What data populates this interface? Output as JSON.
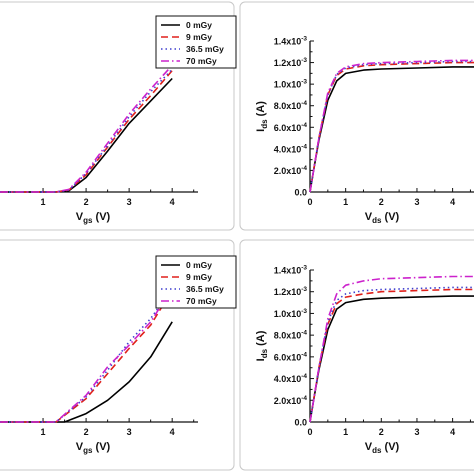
{
  "chart_data": [
    {
      "type": "line",
      "panel": "top-left",
      "xlabel": "V_gs (V)",
      "ylabel": "",
      "xlim": [
        0,
        4.6
      ],
      "ylim": [
        0,
        1
      ],
      "x_ticks": [
        1,
        2,
        3,
        4
      ],
      "grid": false,
      "legend": "top-right",
      "series": [
        {
          "name": "0 mGy",
          "color": "#000000",
          "dash": "solid",
          "x": [
            0,
            1.3,
            1.6,
            2.0,
            2.5,
            3.0,
            3.5,
            4.0
          ],
          "y": [
            0,
            0,
            0.01,
            0.11,
            0.31,
            0.52,
            0.69,
            0.86
          ]
        },
        {
          "name": "9 mGy",
          "color": "#e0201b",
          "dash": "dash",
          "x": [
            0,
            1.3,
            1.6,
            2.0,
            2.5,
            3.0,
            3.5,
            4.0
          ],
          "y": [
            0,
            0,
            0.015,
            0.13,
            0.34,
            0.55,
            0.73,
            0.92
          ]
        },
        {
          "name": "36.5 mGy",
          "color": "#3f3fcf",
          "dash": "dot",
          "x": [
            0,
            1.3,
            1.6,
            2.0,
            2.5,
            3.0,
            3.5,
            4.0
          ],
          "y": [
            0,
            0,
            0.015,
            0.14,
            0.35,
            0.57,
            0.76,
            0.93
          ]
        },
        {
          "name": "70 mGy",
          "color": "#cc22cc",
          "dash": "dashdot",
          "x": [
            0,
            1.3,
            1.6,
            2.0,
            2.5,
            3.0,
            3.5,
            4.0
          ],
          "y": [
            0,
            0,
            0.02,
            0.15,
            0.37,
            0.59,
            0.78,
            0.96
          ]
        }
      ]
    },
    {
      "type": "line",
      "panel": "top-right",
      "xlabel": "V_ds (V)",
      "ylabel": "I_ds (A)",
      "xlim": [
        0,
        4.6
      ],
      "ylim": [
        0,
        0.0014
      ],
      "x_ticks": [
        0,
        1,
        2,
        3,
        4
      ],
      "y_ticks": [
        "0.0",
        "2.0x10^-4",
        "4.0x10^-4",
        "6.0x10^-4",
        "8.0x10^-4",
        "1.0x10^-3",
        "1.2x10^-3",
        "1.4x10^-3"
      ],
      "grid": false,
      "series": [
        {
          "name": "0 mGy",
          "color": "#000000",
          "dash": "solid",
          "x": [
            0,
            0.1,
            0.25,
            0.5,
            0.75,
            1.0,
            1.5,
            2.0,
            3.0,
            4.0,
            4.6
          ],
          "y": [
            0,
            0.0002,
            0.00048,
            0.00085,
            0.00103,
            0.0011,
            0.00113,
            0.00114,
            0.00115,
            0.00116,
            0.00116
          ]
        },
        {
          "name": "9 mGy",
          "color": "#e0201b",
          "dash": "dash",
          "x": [
            0,
            0.1,
            0.25,
            0.5,
            0.75,
            1.0,
            1.5,
            2.0,
            3.0,
            4.0,
            4.6
          ],
          "y": [
            0,
            0.0002,
            0.0005,
            0.0009,
            0.00108,
            0.00114,
            0.00117,
            0.00118,
            0.00119,
            0.0012,
            0.0012
          ]
        },
        {
          "name": "36.5 mGy",
          "color": "#3f3fcf",
          "dash": "dot",
          "x": [
            0,
            0.1,
            0.25,
            0.5,
            0.75,
            1.0,
            1.5,
            2.0,
            3.0,
            4.0,
            4.6
          ],
          "y": [
            0,
            0.0002,
            0.0005,
            0.0009,
            0.00109,
            0.00115,
            0.00118,
            0.00119,
            0.0012,
            0.00121,
            0.00121
          ]
        },
        {
          "name": "70 mGy",
          "color": "#cc22cc",
          "dash": "dashdot",
          "x": [
            0,
            0.1,
            0.25,
            0.5,
            0.75,
            1.0,
            1.5,
            2.0,
            3.0,
            4.0,
            4.6
          ],
          "y": [
            0,
            0.0002,
            0.0005,
            0.00092,
            0.0011,
            0.00116,
            0.00119,
            0.0012,
            0.00121,
            0.00122,
            0.00122
          ]
        }
      ]
    },
    {
      "type": "line",
      "panel": "bottom-left",
      "xlabel": "V_gs (V)",
      "ylabel": "",
      "xlim": [
        0,
        4.6
      ],
      "ylim": [
        0,
        1
      ],
      "x_ticks": [
        1,
        2,
        3,
        4
      ],
      "grid": false,
      "legend": "top-right",
      "series": [
        {
          "name": "0 mGy",
          "color": "#000000",
          "dash": "solid",
          "x": [
            0,
            1.5,
            2.0,
            2.5,
            3.0,
            3.5,
            4.0
          ],
          "y": [
            0,
            0,
            0.05,
            0.13,
            0.24,
            0.39,
            0.6
          ]
        },
        {
          "name": "9 mGy",
          "color": "#e0201b",
          "dash": "dash",
          "x": [
            0,
            1.3,
            2.0,
            2.5,
            3.0,
            3.5,
            4.0
          ],
          "y": [
            0,
            0,
            0.14,
            0.29,
            0.44,
            0.58,
            0.79
          ]
        },
        {
          "name": "36.5 mGy",
          "color": "#3f3fcf",
          "dash": "dot",
          "x": [
            0,
            1.3,
            2.0,
            2.5,
            3.0,
            3.5,
            4.0
          ],
          "y": [
            0,
            0,
            0.15,
            0.31,
            0.48,
            0.62,
            0.8
          ]
        },
        {
          "name": "70 mGy",
          "color": "#cc22cc",
          "dash": "dashdot",
          "x": [
            0,
            1.3,
            2.0,
            2.5,
            3.0,
            3.5,
            4.0
          ],
          "y": [
            0,
            0,
            0.16,
            0.33,
            0.46,
            0.6,
            0.8
          ]
        }
      ]
    },
    {
      "type": "line",
      "panel": "bottom-right",
      "xlabel": "V_ds (V)",
      "ylabel": "I_ds (A)",
      "xlim": [
        0,
        4.6
      ],
      "ylim": [
        0,
        0.0014
      ],
      "x_ticks": [
        0,
        1,
        2,
        3,
        4
      ],
      "y_ticks": [
        "0.0",
        "2.0x10^-4",
        "4.0x10^-4",
        "6.0x10^-4",
        "8.0x10^-4",
        "1.0x10^-3",
        "1.2x10^-3",
        "1.4x10^-3"
      ],
      "grid": false,
      "series": [
        {
          "name": "0 mGy",
          "color": "#000000",
          "dash": "solid",
          "x": [
            0,
            0.1,
            0.25,
            0.5,
            0.75,
            1.0,
            1.5,
            2.0,
            3.0,
            4.0,
            4.6
          ],
          "y": [
            0,
            0.0002,
            0.00048,
            0.00085,
            0.00104,
            0.0011,
            0.00113,
            0.00114,
            0.00115,
            0.00116,
            0.00116
          ]
        },
        {
          "name": "9 mGy",
          "color": "#e0201b",
          "dash": "dash",
          "x": [
            0,
            0.1,
            0.25,
            0.5,
            0.75,
            1.0,
            1.5,
            2.0,
            3.0,
            4.0,
            4.6
          ],
          "y": [
            0,
            0.0002,
            0.0005,
            0.0009,
            0.00109,
            0.00115,
            0.00118,
            0.0012,
            0.00121,
            0.00122,
            0.00122
          ]
        },
        {
          "name": "36.5 mGy",
          "color": "#3f3fcf",
          "dash": "dot",
          "x": [
            0,
            0.1,
            0.25,
            0.5,
            0.75,
            1.0,
            1.5,
            2.0,
            3.0,
            4.0,
            4.6
          ],
          "y": [
            0,
            0.0002,
            0.0005,
            0.00092,
            0.00112,
            0.00118,
            0.00121,
            0.00122,
            0.00123,
            0.00124,
            0.00124
          ]
        },
        {
          "name": "70 mGy",
          "color": "#cc22cc",
          "dash": "dashdot",
          "x": [
            0,
            0.1,
            0.25,
            0.5,
            0.75,
            1.0,
            1.5,
            2.0,
            3.0,
            4.0,
            4.6
          ],
          "y": [
            0,
            0.0002,
            0.0005,
            0.00095,
            0.00118,
            0.00126,
            0.0013,
            0.00132,
            0.00133,
            0.00134,
            0.00134
          ]
        }
      ]
    }
  ]
}
